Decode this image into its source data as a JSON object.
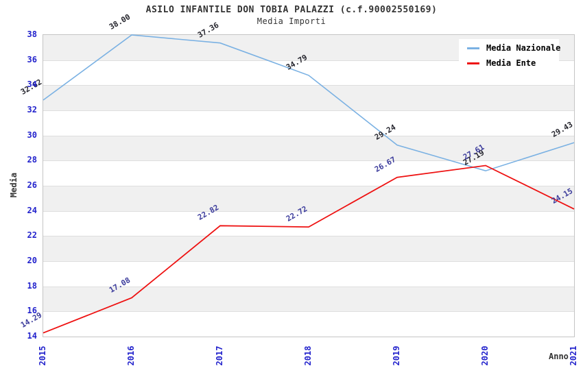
{
  "header": {
    "title": "ASILO INFANTILE DON TOBIA PALAZZI (c.f.90002550169)",
    "subtitle": "Media Importi"
  },
  "chart_data": {
    "type": "line",
    "x": [
      2015,
      2016,
      2017,
      2018,
      2019,
      2020,
      2021
    ],
    "xtick_labels": [
      "2015",
      "2016",
      "2017",
      "2018",
      "2019",
      "2020",
      "2021"
    ],
    "ytick_labels": [
      "14",
      "16",
      "18",
      "20",
      "22",
      "24",
      "26",
      "28",
      "30",
      "32",
      "34",
      "36",
      "38"
    ],
    "series": [
      {
        "name": "Media Nazionale",
        "color": "#7ab1e3",
        "label_color": "#26262e",
        "line_width": 1.6,
        "values": [
          32.82,
          38.0,
          37.36,
          34.79,
          29.24,
          27.19,
          29.43
        ]
      },
      {
        "name": "Media Ente",
        "color": "#ee1111",
        "label_color": "#3c3c9c",
        "line_width": 1.8,
        "values": [
          14.29,
          17.08,
          22.82,
          22.72,
          26.67,
          27.61,
          24.15
        ]
      }
    ],
    "xlabel": "Anno",
    "ylabel": "Media",
    "ylim": [
      14,
      38
    ],
    "ytick_step": 2,
    "grid": "alternating-horizontal-bands",
    "band_color": "#f0f0f0",
    "gridline_color": "#dedede",
    "tick_color": "#2222cc",
    "legend_position": "top-right",
    "point_label_decimals": 2
  },
  "legend": {
    "items": [
      {
        "label": "Media Nazionale",
        "color": "#7ab1e3"
      },
      {
        "label": "Media Ente",
        "color": "#ee1111"
      }
    ]
  }
}
